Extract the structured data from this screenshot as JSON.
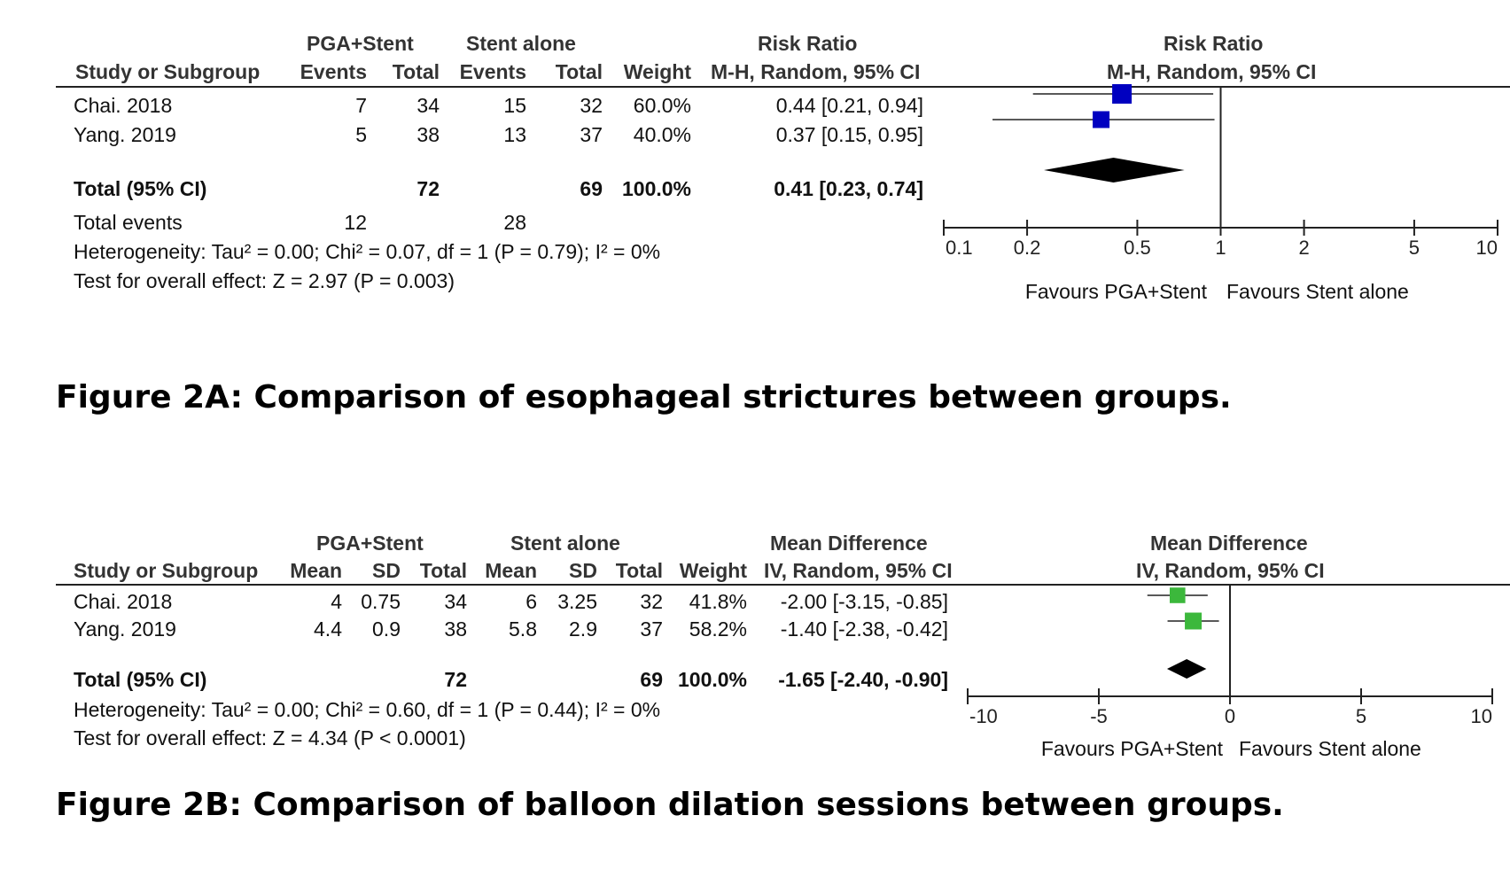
{
  "figure_a": {
    "caption": "Figure 2A: Comparison of esophageal strictures between groups.",
    "headers": {
      "group1": "PGA+Stent",
      "group2": "Stent alone",
      "effect_table": "Risk Ratio",
      "effect_plot": "Risk Ratio",
      "study": "Study or Subgroup",
      "events1": "Events",
      "total1": "Total",
      "events2": "Events",
      "total2": "Total",
      "weight": "Weight",
      "method_table": "M-H, Random, 95% CI",
      "method_plot": "M-H, Random, 95% CI"
    },
    "rows": [
      {
        "study": "Chai. 2018",
        "events1": "7",
        "total1": "34",
        "events2": "15",
        "total2": "32",
        "weight": "60.0%",
        "ci": "0.44 [0.21, 0.94]"
      },
      {
        "study": "Yang. 2019",
        "events1": "5",
        "total1": "38",
        "events2": "13",
        "total2": "37",
        "weight": "40.0%",
        "ci": "0.37 [0.15, 0.95]"
      }
    ],
    "total": {
      "label": "Total (95% CI)",
      "total1": "72",
      "total2": "69",
      "weight": "100.0%",
      "ci": "0.41 [0.23, 0.74]"
    },
    "total_events": {
      "label": "Total events",
      "events1": "12",
      "events2": "28"
    },
    "heterogeneity": "Heterogeneity: Tau² = 0.00; Chi² = 0.07, df = 1 (P = 0.79); I² = 0%",
    "overall_effect": "Test for overall effect: Z = 2.97 (P = 0.003)",
    "favours_left": "Favours PGA+Stent",
    "favours_right": "Favours Stent alone"
  },
  "figure_b": {
    "caption": "Figure 2B: Comparison of balloon dilation sessions between groups.",
    "headers": {
      "group1": "PGA+Stent",
      "group2": "Stent alone",
      "effect_table": "Mean Difference",
      "effect_plot": "Mean Difference",
      "study": "Study or Subgroup",
      "mean1": "Mean",
      "sd1": "SD",
      "total1": "Total",
      "mean2": "Mean",
      "sd2": "SD",
      "total2": "Total",
      "weight": "Weight",
      "method_table": "IV, Random, 95% CI",
      "method_plot": "IV, Random, 95% CI"
    },
    "rows": [
      {
        "study": "Chai. 2018",
        "mean1": "4",
        "sd1": "0.75",
        "total1": "34",
        "mean2": "6",
        "sd2": "3.25",
        "total2": "32",
        "weight": "41.8%",
        "ci": "-2.00 [-3.15, -0.85]"
      },
      {
        "study": "Yang. 2019",
        "mean1": "4.4",
        "sd1": "0.9",
        "total1": "38",
        "mean2": "5.8",
        "sd2": "2.9",
        "total2": "37",
        "weight": "58.2%",
        "ci": "-1.40 [-2.38, -0.42]"
      }
    ],
    "total": {
      "label": "Total (95% CI)",
      "total1": "72",
      "total2": "69",
      "weight": "100.0%",
      "ci": "-1.65 [-2.40, -0.90]"
    },
    "heterogeneity": "Heterogeneity: Tau² = 0.00; Chi² = 0.60, df = 1 (P = 0.44); I² = 0%",
    "overall_effect": "Test for overall effect: Z = 4.34 (P < 0.0001)",
    "favours_left": "Favours PGA+Stent",
    "favours_right": "Favours Stent alone"
  },
  "chart_data": [
    {
      "type": "forest",
      "scale": "log",
      "xlim": [
        0.1,
        10
      ],
      "null_value": 1,
      "tick_labels": [
        "0.1",
        "0.2",
        "0.5",
        "1",
        "2",
        "5",
        "10"
      ],
      "ticks": [
        0.1,
        0.2,
        0.5,
        1,
        2,
        5,
        10
      ],
      "marker_color": "#0000c0",
      "studies": [
        {
          "name": "Chai. 2018",
          "estimate": 0.44,
          "ci_low": 0.21,
          "ci_high": 0.94,
          "weight": 60.0
        },
        {
          "name": "Yang. 2019",
          "estimate": 0.37,
          "ci_low": 0.15,
          "ci_high": 0.95,
          "weight": 40.0
        }
      ],
      "pooled": {
        "estimate": 0.41,
        "ci_low": 0.23,
        "ci_high": 0.74
      }
    },
    {
      "type": "forest",
      "scale": "linear",
      "xlim": [
        -10,
        10
      ],
      "null_value": 0,
      "tick_labels": [
        "-10",
        "-5",
        "0",
        "5",
        "10"
      ],
      "ticks": [
        -10,
        -5,
        0,
        5,
        10
      ],
      "marker_color": "#3cb83c",
      "studies": [
        {
          "name": "Chai. 2018",
          "estimate": -2.0,
          "ci_low": -3.15,
          "ci_high": -0.85,
          "weight": 41.8
        },
        {
          "name": "Yang. 2019",
          "estimate": -1.4,
          "ci_low": -2.38,
          "ci_high": -0.42,
          "weight": 58.2
        }
      ],
      "pooled": {
        "estimate": -1.65,
        "ci_low": -2.4,
        "ci_high": -0.9
      }
    }
  ]
}
